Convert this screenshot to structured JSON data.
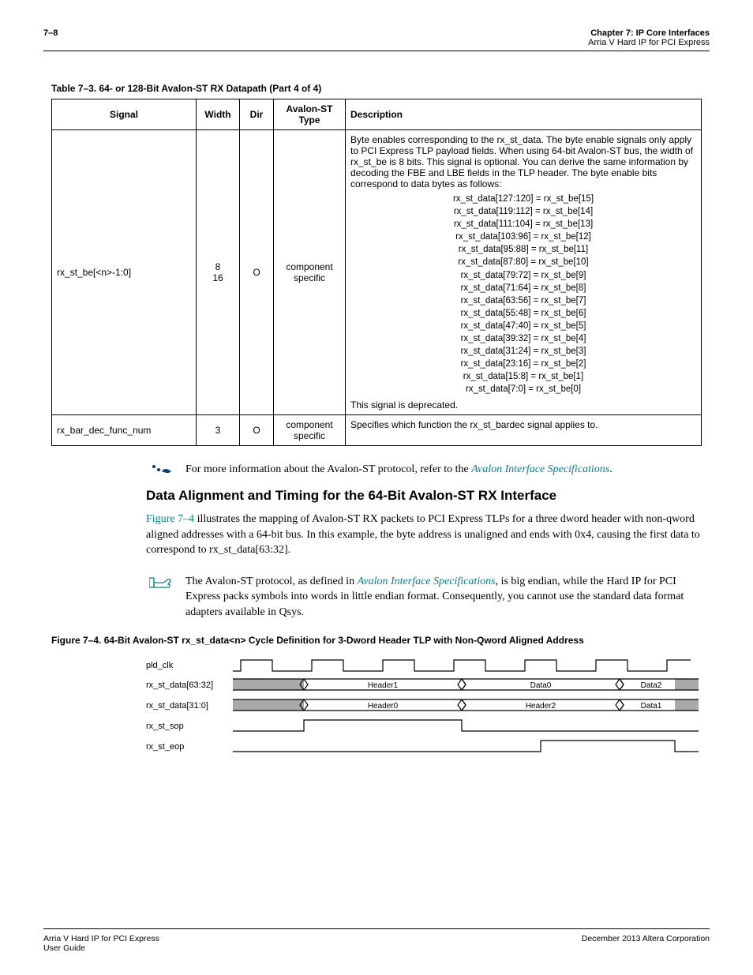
{
  "header": {
    "page_number": "7–8",
    "chapter": "Chapter 7:  IP Core Interfaces",
    "subtitle": "Arria V Hard IP for PCI Express"
  },
  "table": {
    "caption": "Table 7–3.  64- or 128-Bit Avalon-ST RX Datapath   (Part 4 of 4)",
    "headers": {
      "signal": "Signal",
      "width": "Width",
      "dir": "Dir",
      "type": "Avalon-ST Type",
      "desc": "Description"
    },
    "row1": {
      "signal": "rx_st_be[<n>-1:0]",
      "width": "8\n16",
      "dir": "O",
      "type": "component specific",
      "desc_intro": "Byte enables corresponding to the rx_st_data. The byte enable signals only apply to PCI Express TLP payload fields. When using 64-bit Avalon-ST bus, the width of rx_st_be is 8 bits. This signal is optional. You can derive the same information by decoding the FBE and LBE fields in the TLP header. The byte enable bits correspond to data bytes as follows:",
      "map": [
        "rx_st_data[127:120] = rx_st_be[15]",
        "rx_st_data[119:112] = rx_st_be[14]",
        "rx_st_data[111:104] = rx_st_be[13]",
        "rx_st_data[103:96] = rx_st_be[12]",
        "rx_st_data[95:88] = rx_st_be[11]",
        "rx_st_data[87:80] = rx_st_be[10]",
        "rx_st_data[79:72] = rx_st_be[9]",
        "rx_st_data[71:64] = rx_st_be[8]",
        "rx_st_data[63:56] = rx_st_be[7]",
        "rx_st_data[55:48] = rx_st_be[6]",
        "rx_st_data[47:40] = rx_st_be[5]",
        "rx_st_data[39:32] = rx_st_be[4]",
        "rx_st_data[31:24] = rx_st_be[3]",
        "rx_st_data[23:16] = rx_st_be[2]",
        "rx_st_data[15:8] = rx_st_be[1]",
        "rx_st_data[7:0] = rx_st_be[0]"
      ],
      "deprecated": "This signal is deprecated."
    },
    "row2": {
      "signal": "rx_bar_dec_func_num",
      "width": "3",
      "dir": "O",
      "type": "component specific",
      "desc": "Specifies which function the rx_st_bardec signal applies to."
    }
  },
  "note1": {
    "text_pre": "For more information about the Avalon-ST protocol, refer to the ",
    "link": "Avalon Interface Specifications",
    "text_post": "."
  },
  "section_heading": "Data Alignment and Timing for the 64-Bit Avalon-ST RX Interface",
  "para1": {
    "figref": "Figure 7–4",
    "text": " illustrates the mapping of Avalon-ST RX packets to PCI Express TLPs for a three dword header with non-qword aligned addresses with a 64-bit bus. In this example, the byte address is unaligned and ends with 0x4, causing the first data to correspond to rx_st_data[63:32]."
  },
  "note2": {
    "text_pre": "The Avalon-ST protocol, as defined in ",
    "link": "Avalon Interface Specifications",
    "text_post": ", is big endian, while the Hard IP for PCI Express packs symbols into words in little endian format. Consequently, you cannot use the standard data format adapters available in Qsys."
  },
  "figure": {
    "caption": "Figure 7–4.  64-Bit Avalon-ST rx_st_data<n> Cycle Definition for 3-Dword Header TLP with Non-Qword Aligned Address",
    "signals": [
      "pld_clk",
      "rx_st_data[63:32]",
      "rx_st_data[31:0]",
      "rx_st_sop",
      "rx_st_eop"
    ],
    "segs_high": [
      "Header1",
      "Data0",
      "Data2"
    ],
    "segs_low": [
      "Header0",
      "Header2",
      "Data1"
    ],
    "colors": {
      "grey": "#a9a9a9",
      "line": "#000000",
      "bg": "#ffffff"
    }
  },
  "footer": {
    "left1": "Arria V Hard IP for PCI Express",
    "left2": "User Guide",
    "right": "December 2013   Altera Corporation"
  }
}
